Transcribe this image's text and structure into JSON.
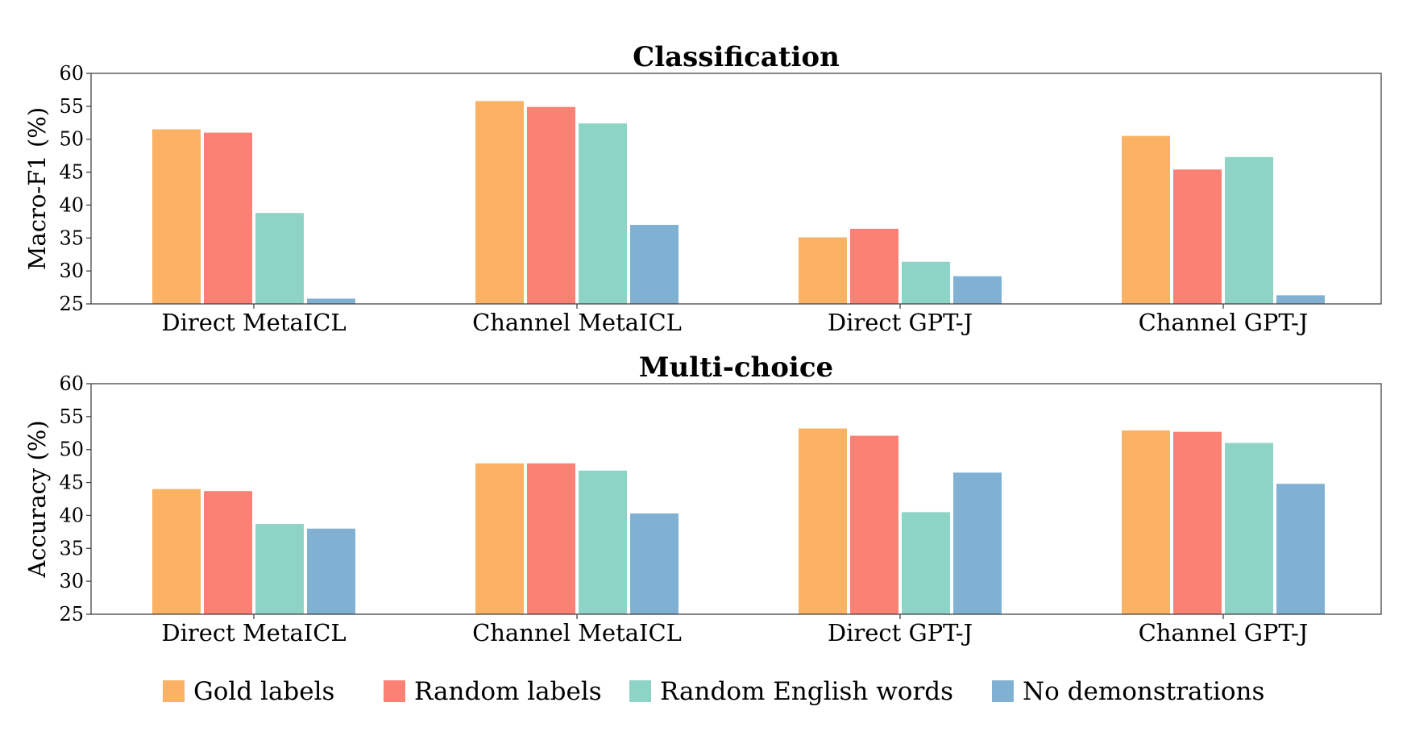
{
  "colors": {
    "gold": "#fbb264",
    "random": "#fa8173",
    "english": "#8dd4c7",
    "none": "#80b1d3"
  },
  "legend": [
    {
      "label": "Gold labels",
      "color_key": "gold"
    },
    {
      "label": "Random labels",
      "color_key": "random"
    },
    {
      "label": "Random English words",
      "color_key": "english"
    },
    {
      "label": "No demonstrations",
      "color_key": "none"
    }
  ],
  "chart_data": [
    {
      "type": "bar",
      "title": "Classification",
      "ylabel": "Macro-F1 (%)",
      "xlabel": "",
      "ylim": [
        25,
        60
      ],
      "yticks": [
        25,
        30,
        35,
        40,
        45,
        50,
        55,
        60
      ],
      "categories": [
        "Direct MetaICL",
        "Channel MetaICL",
        "Direct GPT-J",
        "Channel GPT-J"
      ],
      "series": [
        {
          "name": "Gold labels",
          "values": [
            51.5,
            55.8,
            35.1,
            50.5
          ]
        },
        {
          "name": "Random labels",
          "values": [
            51.0,
            54.9,
            36.4,
            45.4
          ]
        },
        {
          "name": "Random English words",
          "values": [
            38.8,
            52.4,
            31.4,
            47.3
          ]
        },
        {
          "name": "No demonstrations",
          "values": [
            25.8,
            37.0,
            29.2,
            26.3
          ]
        }
      ],
      "grid": false,
      "legend_position": "bottom"
    },
    {
      "type": "bar",
      "title": "Multi-choice",
      "ylabel": "Accuracy (%)",
      "xlabel": "",
      "ylim": [
        25,
        60
      ],
      "yticks": [
        25,
        30,
        35,
        40,
        45,
        50,
        55,
        60
      ],
      "categories": [
        "Direct MetaICL",
        "Channel MetaICL",
        "Direct GPT-J",
        "Channel GPT-J"
      ],
      "series": [
        {
          "name": "Gold labels",
          "values": [
            44.0,
            47.9,
            53.2,
            52.9
          ]
        },
        {
          "name": "Random labels",
          "values": [
            43.7,
            47.9,
            52.1,
            52.7
          ]
        },
        {
          "name": "Random English words",
          "values": [
            38.7,
            46.8,
            40.5,
            51.0
          ]
        },
        {
          "name": "No demonstrations",
          "values": [
            38.0,
            40.3,
            46.5,
            44.8
          ]
        }
      ],
      "grid": false,
      "legend_position": "bottom"
    }
  ]
}
